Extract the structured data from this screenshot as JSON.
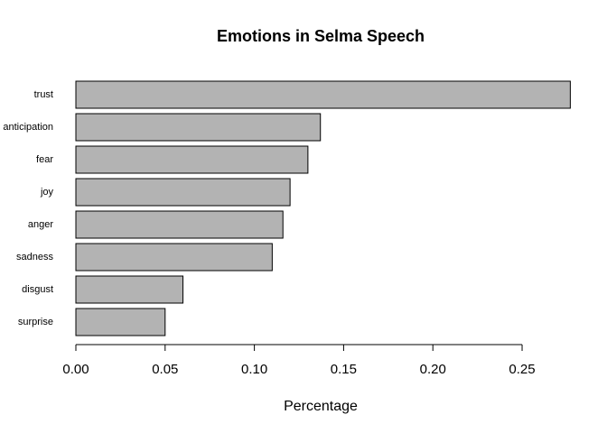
{
  "chart_data": {
    "type": "barh",
    "title": "Emotions in Selma Speech",
    "xlabel": "Percentage",
    "categories": [
      "trust",
      "anticipation",
      "fear",
      "joy",
      "anger",
      "sadness",
      "disgust",
      "surprise"
    ],
    "values": [
      0.277,
      0.137,
      0.13,
      0.12,
      0.116,
      0.11,
      0.06,
      0.05
    ],
    "color": "#b3b3b3",
    "xlim": [
      0,
      0.28
    ],
    "xticks": [
      {
        "value": 0,
        "label": "0.00"
      },
      {
        "value": 0.05,
        "label": "0.05"
      },
      {
        "value": 0.1,
        "label": "0.10"
      },
      {
        "value": 0.15,
        "label": "0.15"
      },
      {
        "value": 0.2,
        "label": "0.20"
      },
      {
        "value": 0.25,
        "label": "0.25"
      }
    ]
  }
}
